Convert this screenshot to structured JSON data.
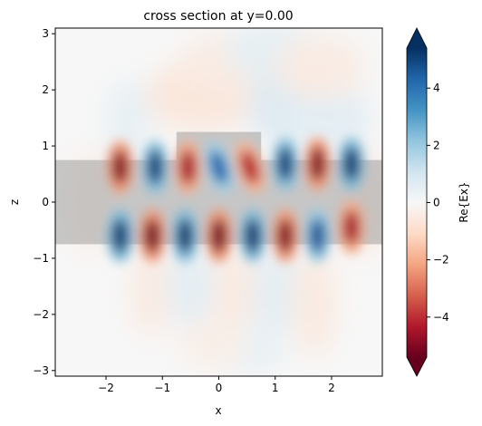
{
  "chart_data": {
    "type": "heatmap",
    "title": "cross section at y=0.00",
    "xlabel": "x",
    "ylabel": "z",
    "xlim": [
      -2.9,
      2.9
    ],
    "ylim": [
      -3.1,
      3.1
    ],
    "x_ticks": [
      -2,
      -1,
      0,
      1,
      2
    ],
    "x_tick_labels": [
      "−2",
      "−1",
      "0",
      "1",
      "2"
    ],
    "y_ticks": [
      -3,
      -2,
      -1,
      0,
      1,
      2,
      3
    ],
    "y_tick_labels": [
      "−3",
      "−2",
      "−1",
      "0",
      "1",
      "2",
      "3"
    ],
    "colormap": "RdBu",
    "colorbar": {
      "label": "Re{Ex}",
      "range": [
        -5.4,
        5.4
      ],
      "ticks": [
        -4,
        -2,
        0,
        2,
        4
      ],
      "tick_labels": [
        "−4",
        "−2",
        "0",
        "2",
        "4"
      ],
      "extend": "both"
    },
    "structures": [
      {
        "name": "waveguide",
        "x_range": [
          -2.9,
          2.9
        ],
        "z_range": [
          -0.75,
          0.75
        ]
      },
      {
        "name": "upper block",
        "x_range": [
          -0.75,
          0.75
        ],
        "z_range": [
          0.75,
          1.25
        ]
      }
    ],
    "lobes": [
      {
        "x": -1.75,
        "z": 0.62,
        "value": -5
      },
      {
        "x": -1.13,
        "z": 0.62,
        "value": 5
      },
      {
        "x": -0.55,
        "z": 0.62,
        "value": -4.5
      },
      {
        "x": 0.0,
        "z": 0.62,
        "value": 4.2,
        "tilted": true
      },
      {
        "x": 0.55,
        "z": 0.62,
        "value": -4.2,
        "tilted": true
      },
      {
        "x": 1.18,
        "z": 0.68,
        "value": 5
      },
      {
        "x": 1.75,
        "z": 0.68,
        "value": -5
      },
      {
        "x": 2.35,
        "z": 0.68,
        "value": 5.2
      },
      {
        "x": -1.75,
        "z": -0.6,
        "value": 5.2
      },
      {
        "x": -1.18,
        "z": -0.6,
        "value": -5.2
      },
      {
        "x": -0.6,
        "z": -0.6,
        "value": 5.2
      },
      {
        "x": 0.0,
        "z": -0.6,
        "value": -5.2
      },
      {
        "x": 0.6,
        "z": -0.6,
        "value": 5.2
      },
      {
        "x": 1.18,
        "z": -0.6,
        "value": -5
      },
      {
        "x": 1.75,
        "z": -0.6,
        "value": 4.6
      },
      {
        "x": 2.35,
        "z": -0.45,
        "value": -4.5
      }
    ]
  }
}
